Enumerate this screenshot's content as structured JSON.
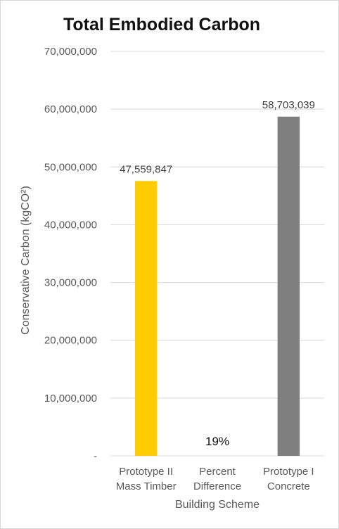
{
  "chart_data": {
    "type": "bar",
    "title": "Total Embodied Carbon",
    "xlabel": "Building Scheme",
    "ylabel": "Conservative Carbon (kgCO²)",
    "ylim": [
      0,
      70000000
    ],
    "yticks": [
      {
        "value": 0,
        "label": "-"
      },
      {
        "value": 10000000,
        "label": "10,000,000"
      },
      {
        "value": 20000000,
        "label": "20,000,000"
      },
      {
        "value": 30000000,
        "label": "30,000,000"
      },
      {
        "value": 40000000,
        "label": "40,000,000"
      },
      {
        "value": 50000000,
        "label": "50,000,000"
      },
      {
        "value": 60000000,
        "label": "60,000,000"
      },
      {
        "value": 70000000,
        "label": "70,000,000"
      }
    ],
    "grid": true,
    "legend": "none",
    "categories": [
      {
        "lines": [
          "Prototype II",
          "Mass Timber"
        ],
        "value": 47559847,
        "label": "47,559,847",
        "color": "#ffcc00"
      },
      {
        "lines": [
          "Percent",
          "Difference"
        ],
        "value": null,
        "label": "19%",
        "color": null
      },
      {
        "lines": [
          "Prototype I",
          "Concrete"
        ],
        "value": 58703039,
        "label": "58,703,039",
        "color": "#7f7f7f"
      }
    ]
  }
}
